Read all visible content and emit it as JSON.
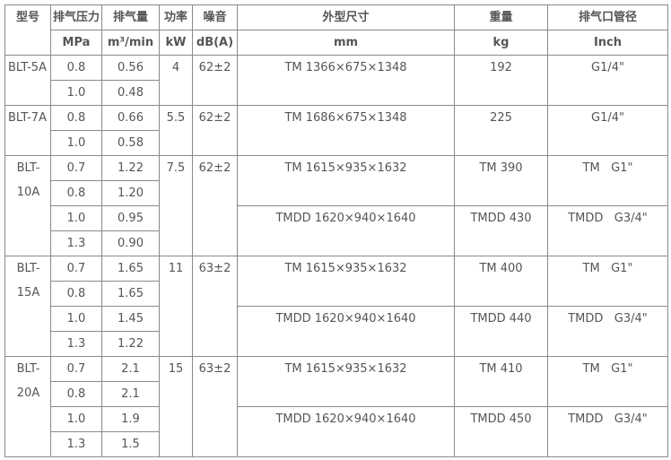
{
  "header": {
    "row1": [
      "型号",
      "排气压力",
      "排气量",
      "功率",
      "噪音",
      "外型尺寸",
      "重量",
      "排气口管径"
    ],
    "row2": [
      "MPa",
      "m³/min",
      "kW",
      "dB(A)",
      "mm",
      "kg",
      "Inch"
    ]
  },
  "groups": [
    {
      "model": "BLT-5A",
      "power": "4",
      "noise": "62±2",
      "rows": [
        {
          "pressure": "0.8",
          "flow": "0.56"
        },
        {
          "pressure": "1.0",
          "flow": "0.48"
        }
      ],
      "variants": [
        {
          "size": "TM 1366×675×1348",
          "weight": "192",
          "port": "G1/4\""
        }
      ]
    },
    {
      "model": "BLT-7A",
      "power": "5.5",
      "noise": "62±2",
      "rows": [
        {
          "pressure": "0.8",
          "flow": "0.66"
        },
        {
          "pressure": "1.0",
          "flow": "0.58"
        }
      ],
      "variants": [
        {
          "size": "TM 1686×675×1348",
          "weight": "225",
          "port": "G1/4\""
        }
      ]
    },
    {
      "model": "BLT-10A",
      "power": "7.5",
      "noise": "62±2",
      "rows": [
        {
          "pressure": "0.7",
          "flow": "1.22"
        },
        {
          "pressure": "0.8",
          "flow": "1.20"
        },
        {
          "pressure": "1.0",
          "flow": "0.95"
        },
        {
          "pressure": "1.3",
          "flow": "0.90"
        }
      ],
      "variants": [
        {
          "size": "TM 1615×935×1632",
          "weight": "TM 390",
          "port": "TM   G1\""
        },
        {
          "size": "TMDD 1620×940×1640",
          "weight": "TMDD 430",
          "port": "TMDD   G3/4\""
        }
      ]
    },
    {
      "model": "BLT-15A",
      "power": "11",
      "noise": "63±2",
      "rows": [
        {
          "pressure": "0.7",
          "flow": "1.65"
        },
        {
          "pressure": "0.8",
          "flow": "1.65"
        },
        {
          "pressure": "1.0",
          "flow": "1.45"
        },
        {
          "pressure": "1.3",
          "flow": "1.22"
        }
      ],
      "variants": [
        {
          "size": "TM 1615×935×1632",
          "weight": "TM 400",
          "port": "TM   G1\""
        },
        {
          "size": "TMDD 1620×940×1640",
          "weight": "TMDD 440",
          "port": "TMDD   G3/4\""
        }
      ]
    },
    {
      "model": "BLT-20A",
      "power": "15",
      "noise": "63±2",
      "rows": [
        {
          "pressure": "0.7",
          "flow": "2.1"
        },
        {
          "pressure": "0.8",
          "flow": "2.1"
        },
        {
          "pressure": "1.0",
          "flow": "1.9"
        },
        {
          "pressure": "1.3",
          "flow": "1.5"
        }
      ],
      "variants": [
        {
          "size": "TM 1615×935×1632",
          "weight": "TM 410",
          "port": "TM   G1\""
        },
        {
          "size": "TMDD 1620×940×1640",
          "weight": "TMDD 450",
          "port": "TMDD   G3/4\""
        }
      ]
    }
  ]
}
